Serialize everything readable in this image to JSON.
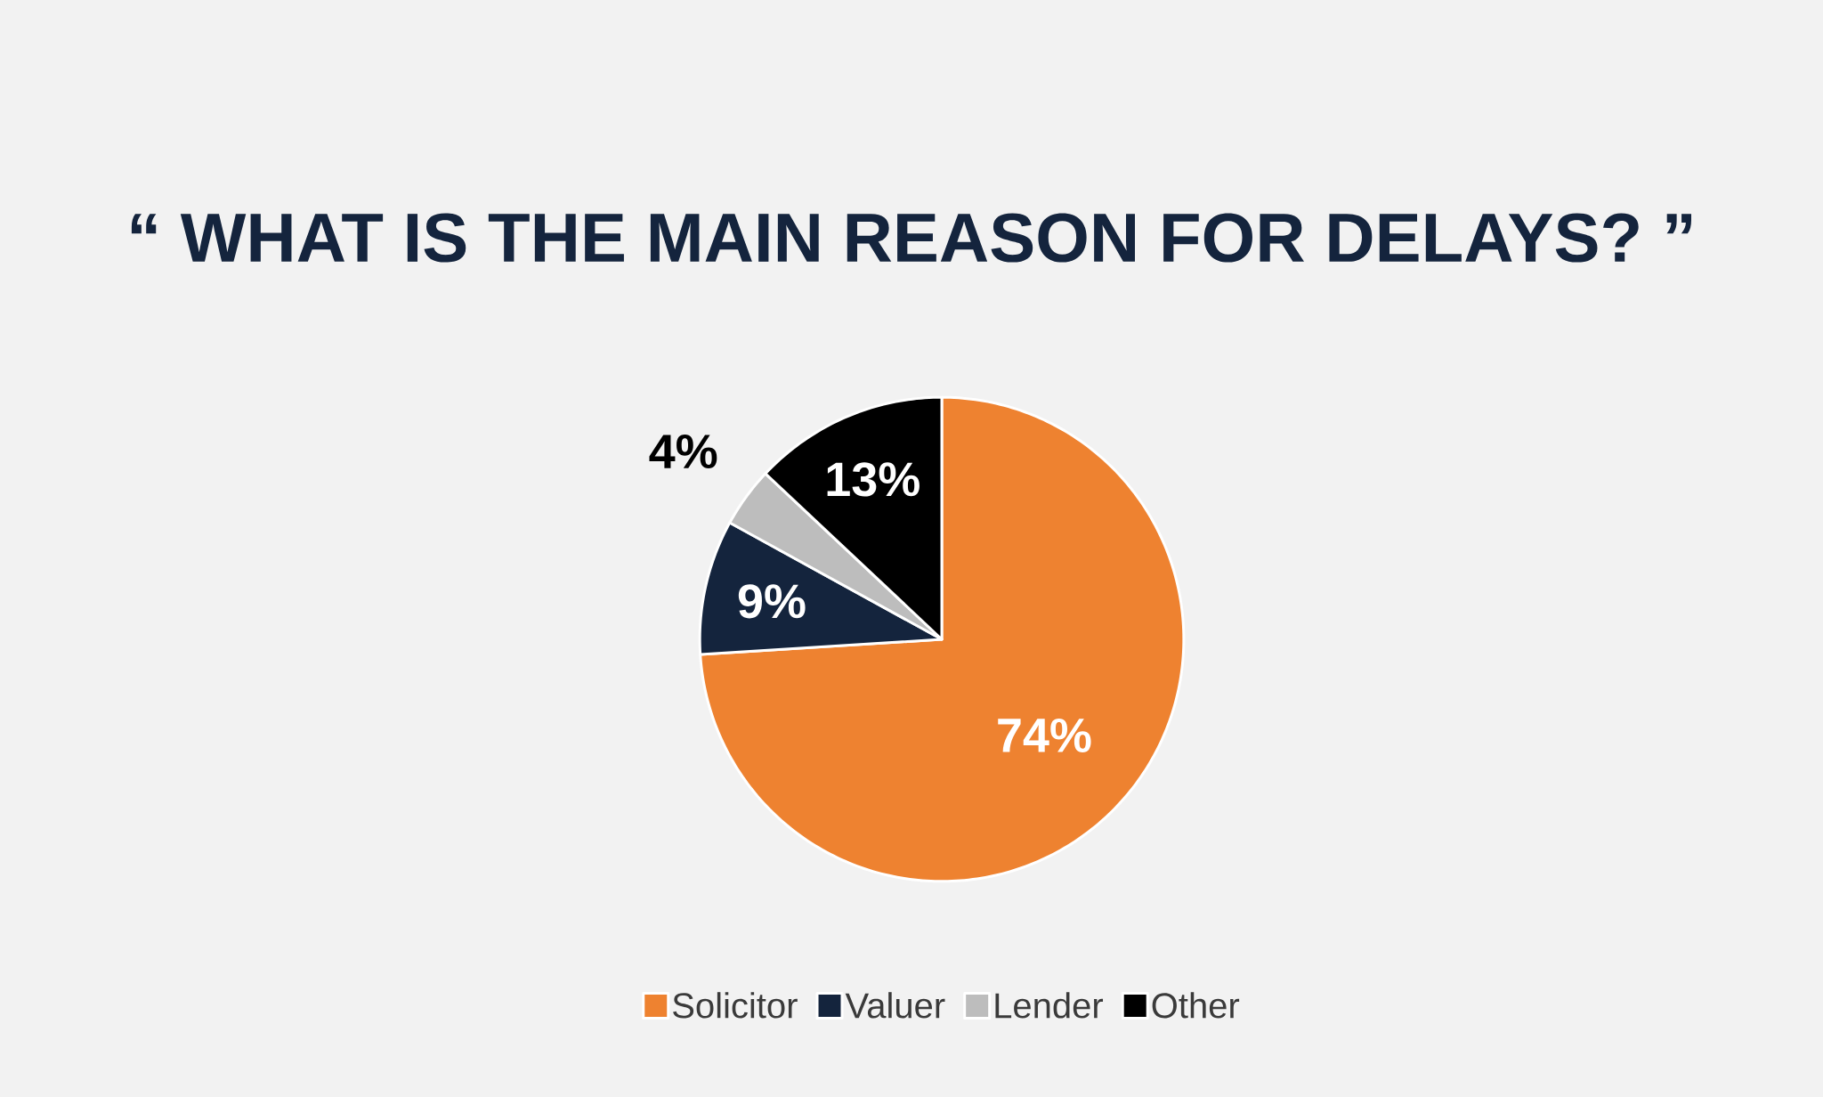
{
  "chart_data": {
    "type": "pie",
    "title": "“ WHAT IS THE MAIN REASON FOR DELAYS? ”",
    "categories": [
      "Solicitor",
      "Valuer",
      "Lender",
      "Other"
    ],
    "values": [
      74,
      9,
      4,
      13
    ],
    "colors": [
      "#ee8230",
      "#14243d",
      "#bdbdbd",
      "#000000"
    ],
    "value_labels": [
      "74%",
      "9%",
      "4%",
      "13%"
    ],
    "legend": "bottom"
  }
}
